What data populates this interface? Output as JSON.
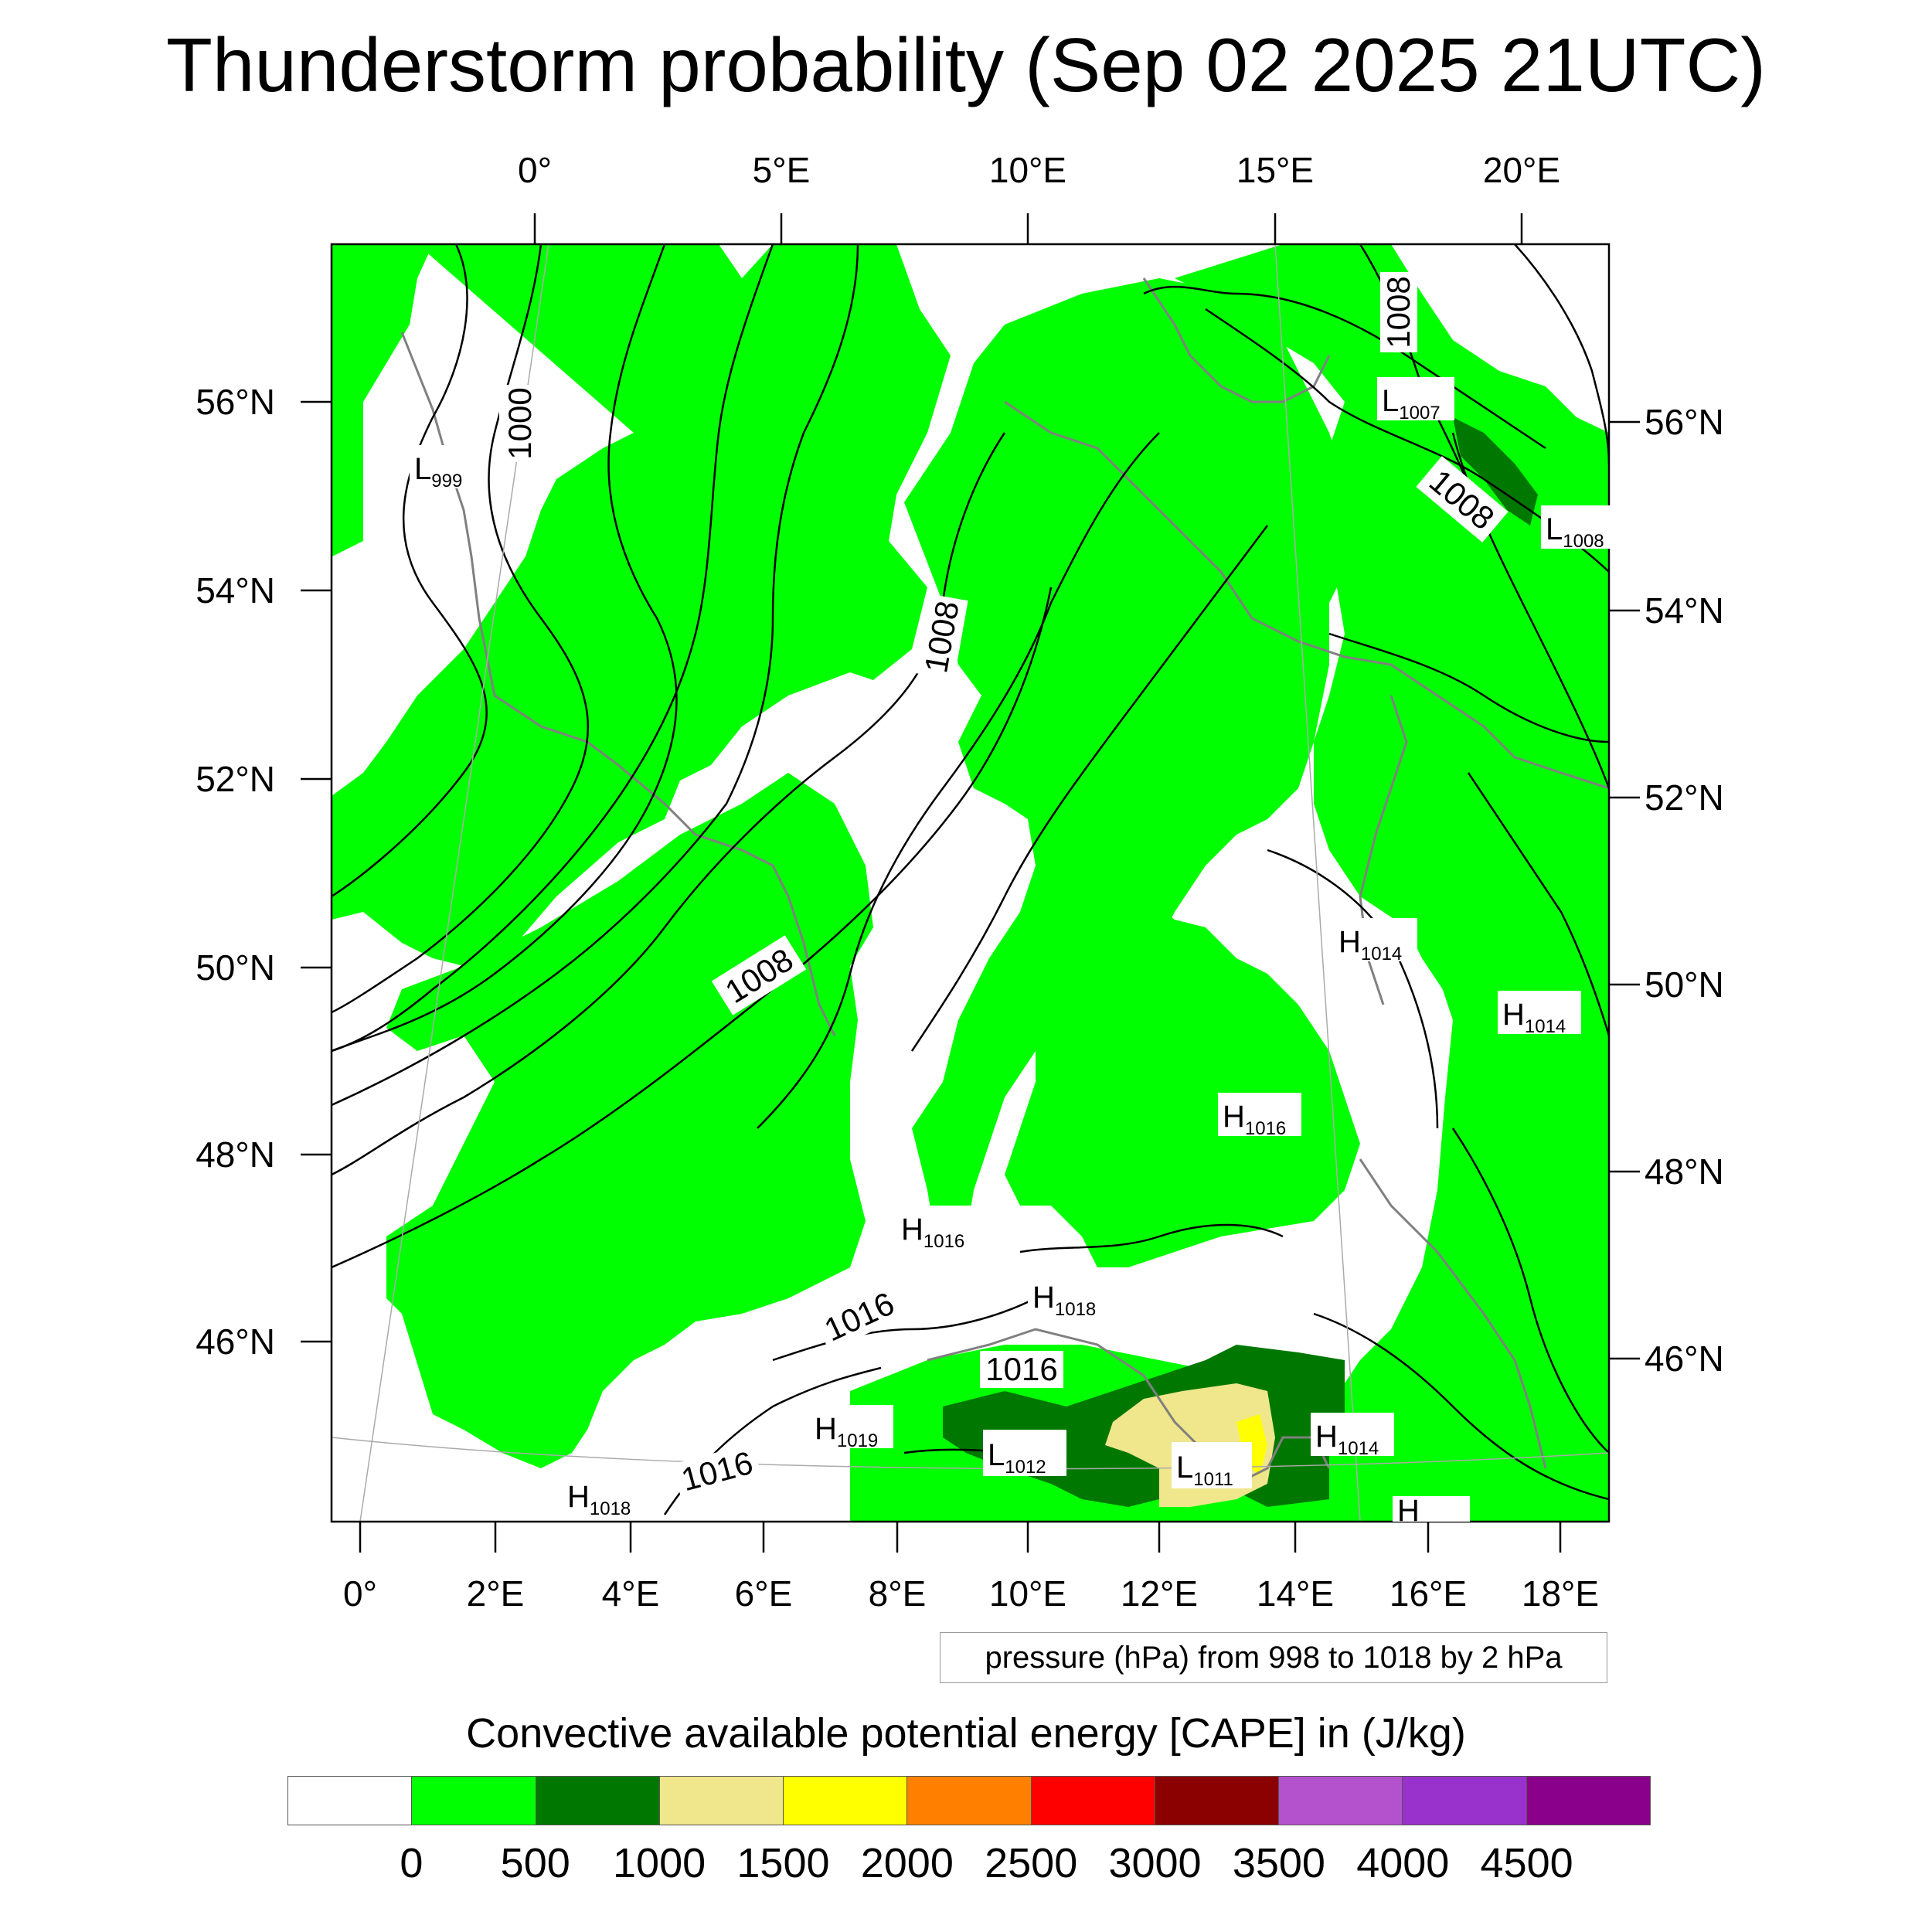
{
  "title": "Thunderstorm probability (Sep 02 2025 21UTC)",
  "axes": {
    "top_lon_labels": [
      "0°",
      "5°E",
      "10°E",
      "15°E",
      "20°E"
    ],
    "bottom_lon_labels": [
      "0°",
      "2°E",
      "4°E",
      "6°E",
      "8°E",
      "10°E",
      "12°E",
      "14°E",
      "16°E",
      "18°E"
    ],
    "left_lat_labels": [
      "56°N",
      "54°N",
      "52°N",
      "50°N",
      "48°N",
      "46°N"
    ],
    "right_lat_labels": [
      "56°N",
      "54°N",
      "52°N",
      "50°N",
      "48°N",
      "46°N"
    ]
  },
  "isobar_labels": [
    "1000",
    "1008",
    "1008",
    "1008",
    "1008",
    "1016",
    "1016",
    "1016"
  ],
  "pressure_centers": [
    {
      "type": "L",
      "value": "999"
    },
    {
      "type": "L",
      "value": "1007"
    },
    {
      "type": "L",
      "value": "1008"
    },
    {
      "type": "H",
      "value": "1014"
    },
    {
      "type": "H",
      "value": "1014"
    },
    {
      "type": "H",
      "value": "1016"
    },
    {
      "type": "H",
      "value": "1016"
    },
    {
      "type": "H",
      "value": "1018"
    },
    {
      "type": "H",
      "value": "1019"
    },
    {
      "type": "L",
      "value": "1012"
    },
    {
      "type": "L",
      "value": "1011"
    },
    {
      "type": "H",
      "value": "1014"
    },
    {
      "type": "H",
      "value": "1018"
    },
    {
      "type": "H",
      "value": ""
    }
  ],
  "pressure_note": "pressure (hPa) from 998 to 1018 by 2 hPa",
  "legend": {
    "title": "Convective available potential energy [CAPE] in (J/kg)",
    "colors": [
      "#ffffff",
      "#00ff00",
      "#007800",
      "#f0e68c",
      "#ffff00",
      "#ff8000",
      "#ff0000",
      "#8b0000",
      "#b452cd",
      "#9932cc",
      "#8b008b"
    ],
    "labels": [
      "0",
      "500",
      "1000",
      "1500",
      "2000",
      "2500",
      "3000",
      "3500",
      "4000",
      "4500"
    ]
  },
  "colors": {
    "cape_0_500": "#00ff00",
    "cape_500_1000": "#007800",
    "cape_1000_1500": "#f0e68c",
    "cape_1500_2000": "#ffff00",
    "isobar": "#000000",
    "coastline": "#808080"
  }
}
